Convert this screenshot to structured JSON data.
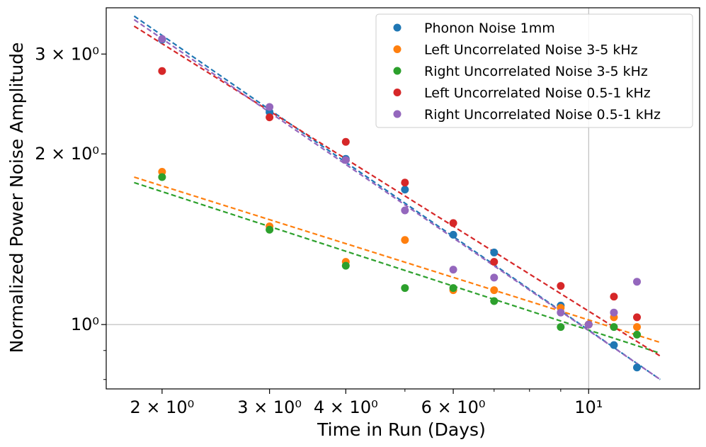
{
  "chart_data": {
    "type": "scatter",
    "xscale": "log",
    "yscale": "log",
    "xlabel": "Time in Run (Days)",
    "ylabel": "Normalized Power Noise Amplitude",
    "xlim": [
      1.62,
      15.2
    ],
    "ylim": [
      0.77,
      3.62
    ],
    "xtick_labels": [
      {
        "value": 2,
        "label": "2 × 10⁰"
      },
      {
        "value": 3,
        "label": "3 × 10⁰"
      },
      {
        "value": 4,
        "label": "4 × 10⁰"
      },
      {
        "value": 6,
        "label": "6 × 10⁰"
      },
      {
        "value": 10,
        "label": "10¹"
      }
    ],
    "ytick_labels": [
      {
        "value": 1,
        "label": "10⁰"
      },
      {
        "value": 2,
        "label": "2 × 10⁰"
      },
      {
        "value": 3,
        "label": "3 × 10⁰"
      }
    ],
    "grid_lines": {
      "x": [
        10
      ],
      "y": [
        1
      ]
    },
    "legend_position": "upper right",
    "series": [
      {
        "name": "Phonon Noise 1mm",
        "color": "#1f77b4",
        "x": [
          2,
          3,
          4,
          5,
          6,
          7,
          9,
          10,
          11,
          12
        ],
        "y": [
          3.18,
          2.37,
          1.96,
          1.73,
          1.44,
          1.34,
          1.08,
          1.0,
          0.92,
          0.84
        ],
        "fit": {
          "x": [
            1.8,
            13.1
          ],
          "y": [
            3.5,
            0.8
          ]
        }
      },
      {
        "name": "Left Uncorrelated Noise 3-5 kHz",
        "color": "#ff7f0e",
        "x": [
          2,
          3,
          4,
          5,
          6,
          7,
          9,
          10,
          11,
          12
        ],
        "y": [
          1.86,
          1.49,
          1.29,
          1.41,
          1.15,
          1.15,
          1.07,
          1.0,
          1.03,
          0.99
        ],
        "fit": {
          "x": [
            1.8,
            13.1
          ],
          "y": [
            1.82,
            0.93
          ]
        }
      },
      {
        "name": "Right Uncorrelated Noise 3-5 kHz",
        "color": "#2ca02c",
        "x": [
          2,
          3,
          4,
          5,
          6,
          7,
          9,
          10,
          11,
          12
        ],
        "y": [
          1.82,
          1.47,
          1.27,
          1.16,
          1.16,
          1.1,
          0.99,
          1.0,
          0.99,
          0.96
        ],
        "fit": {
          "x": [
            1.8,
            13.1
          ],
          "y": [
            1.78,
            0.89
          ]
        }
      },
      {
        "name": "Left Uncorrelated Noise 0.5-1 kHz",
        "color": "#d62728",
        "x": [
          2,
          3,
          4,
          5,
          6,
          7,
          9,
          10,
          11,
          12
        ],
        "y": [
          2.8,
          2.32,
          2.1,
          1.78,
          1.51,
          1.29,
          1.17,
          1.0,
          1.12,
          1.03
        ],
        "fit": {
          "x": [
            1.8,
            13.1
          ],
          "y": [
            3.36,
            0.88
          ]
        }
      },
      {
        "name": "Right Uncorrelated Noise 0.5-1 kHz",
        "color": "#9467bd",
        "x": [
          2,
          3,
          4,
          5,
          6,
          7,
          9,
          10,
          11,
          12
        ],
        "y": [
          3.19,
          2.42,
          1.95,
          1.59,
          1.25,
          1.21,
          1.05,
          1.0,
          1.05,
          1.19
        ],
        "fit": {
          "x": [
            1.8,
            13.1
          ],
          "y": [
            3.45,
            0.8
          ]
        }
      }
    ]
  }
}
